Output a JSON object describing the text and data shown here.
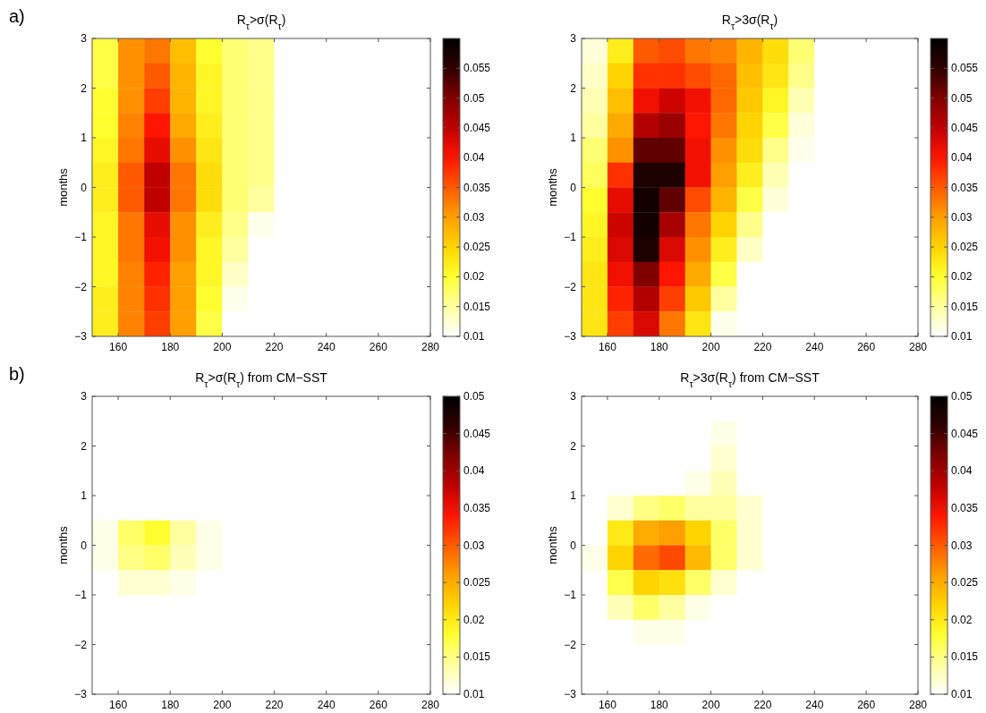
{
  "chart_data": [
    {
      "type": "heatmap",
      "title": "R$_{τ}$>σ(R$_{τ}$)",
      "ylabel": "months",
      "annotations": [
        "a)"
      ],
      "x": [
        155,
        165,
        175,
        185,
        195,
        205,
        215,
        225,
        235,
        245,
        255,
        265,
        275
      ],
      "y": [
        2.75,
        2.25,
        1.75,
        1.25,
        0.75,
        0.25,
        -0.25,
        -0.75,
        -1.25,
        -1.75,
        -2.25,
        -2.75
      ],
      "xlim": [
        150,
        280
      ],
      "xticks": [
        160,
        180,
        200,
        220,
        240,
        260,
        280
      ],
      "ylim": [
        -3,
        3
      ],
      "yticks": [
        -3,
        -2,
        -1,
        0,
        1,
        2,
        3
      ],
      "clim": [
        0.01,
        0.06
      ],
      "cticks": [
        0.01,
        0.015,
        0.02,
        0.025,
        0.03,
        0.035,
        0.04,
        0.045,
        0.05,
        0.055
      ],
      "cells": [
        [
          0.019,
          0.031,
          0.033,
          0.027,
          0.02,
          0.017,
          0.016,
          0.01,
          0.01,
          0.01,
          0.01,
          0.01,
          0.01
        ],
        [
          0.019,
          0.031,
          0.035,
          0.028,
          0.021,
          0.017,
          0.016,
          0.01,
          0.01,
          0.01,
          0.01,
          0.01,
          0.01
        ],
        [
          0.02,
          0.031,
          0.037,
          0.028,
          0.021,
          0.017,
          0.016,
          0.01,
          0.01,
          0.01,
          0.01,
          0.01,
          0.01
        ],
        [
          0.02,
          0.032,
          0.04,
          0.029,
          0.022,
          0.017,
          0.016,
          0.01,
          0.01,
          0.01,
          0.01,
          0.01,
          0.01
        ],
        [
          0.021,
          0.033,
          0.042,
          0.031,
          0.023,
          0.017,
          0.016,
          0.01,
          0.01,
          0.01,
          0.01,
          0.01,
          0.01
        ],
        [
          0.022,
          0.035,
          0.045,
          0.033,
          0.024,
          0.017,
          0.016,
          0.01,
          0.01,
          0.01,
          0.01,
          0.01,
          0.01
        ],
        [
          0.022,
          0.035,
          0.045,
          0.033,
          0.024,
          0.017,
          0.015,
          0.01,
          0.01,
          0.01,
          0.01,
          0.01,
          0.01
        ],
        [
          0.021,
          0.033,
          0.042,
          0.031,
          0.022,
          0.016,
          0.011,
          0.01,
          0.01,
          0.01,
          0.01,
          0.01,
          0.01
        ],
        [
          0.021,
          0.033,
          0.041,
          0.031,
          0.021,
          0.015,
          0.01,
          0.01,
          0.01,
          0.01,
          0.01,
          0.01,
          0.01
        ],
        [
          0.021,
          0.032,
          0.039,
          0.03,
          0.021,
          0.013,
          0.01,
          0.01,
          0.01,
          0.01,
          0.01,
          0.01,
          0.01
        ],
        [
          0.022,
          0.032,
          0.038,
          0.03,
          0.02,
          0.011,
          0.01,
          0.01,
          0.01,
          0.01,
          0.01,
          0.01,
          0.01
        ],
        [
          0.022,
          0.032,
          0.037,
          0.03,
          0.019,
          0.01,
          0.01,
          0.01,
          0.01,
          0.01,
          0.01,
          0.01,
          0.01
        ]
      ]
    },
    {
      "type": "heatmap",
      "title": "R$_{τ}$>3σ(R$_{τ}$)",
      "ylabel": "months",
      "x": [
        155,
        165,
        175,
        185,
        195,
        205,
        215,
        225,
        235,
        245,
        255,
        265,
        275
      ],
      "y": [
        2.75,
        2.25,
        1.75,
        1.25,
        0.75,
        0.25,
        -0.25,
        -0.75,
        -1.25,
        -1.75,
        -2.25,
        -2.75
      ],
      "xlim": [
        150,
        280
      ],
      "xticks": [
        160,
        180,
        200,
        220,
        240,
        260,
        280
      ],
      "ylim": [
        -3,
        3
      ],
      "yticks": [
        -3,
        -2,
        -1,
        0,
        1,
        2,
        3
      ],
      "clim": [
        0.01,
        0.06
      ],
      "cticks": [
        0.01,
        0.015,
        0.02,
        0.025,
        0.03,
        0.035,
        0.04,
        0.045,
        0.05,
        0.055
      ],
      "cells": [
        [
          0.012,
          0.022,
          0.035,
          0.036,
          0.033,
          0.032,
          0.028,
          0.024,
          0.017,
          0.01,
          0.01,
          0.01,
          0.01
        ],
        [
          0.013,
          0.025,
          0.038,
          0.038,
          0.036,
          0.034,
          0.027,
          0.023,
          0.016,
          0.01,
          0.01,
          0.01,
          0.01
        ],
        [
          0.014,
          0.027,
          0.041,
          0.044,
          0.041,
          0.034,
          0.026,
          0.021,
          0.014,
          0.01,
          0.01,
          0.01,
          0.01
        ],
        [
          0.015,
          0.029,
          0.046,
          0.048,
          0.04,
          0.033,
          0.025,
          0.019,
          0.012,
          0.01,
          0.01,
          0.01,
          0.01
        ],
        [
          0.017,
          0.031,
          0.052,
          0.052,
          0.041,
          0.031,
          0.024,
          0.016,
          0.011,
          0.01,
          0.01,
          0.01,
          0.01
        ],
        [
          0.018,
          0.038,
          0.057,
          0.057,
          0.041,
          0.03,
          0.022,
          0.014,
          0.01,
          0.01,
          0.01,
          0.01,
          0.01
        ],
        [
          0.02,
          0.042,
          0.058,
          0.052,
          0.036,
          0.028,
          0.019,
          0.012,
          0.01,
          0.01,
          0.01,
          0.01,
          0.01
        ],
        [
          0.021,
          0.044,
          0.058,
          0.047,
          0.033,
          0.025,
          0.016,
          0.01,
          0.01,
          0.01,
          0.01,
          0.01,
          0.01
        ],
        [
          0.022,
          0.043,
          0.057,
          0.043,
          0.031,
          0.022,
          0.013,
          0.01,
          0.01,
          0.01,
          0.01,
          0.01,
          0.01
        ],
        [
          0.023,
          0.041,
          0.05,
          0.04,
          0.029,
          0.019,
          0.01,
          0.01,
          0.01,
          0.01,
          0.01,
          0.01,
          0.01
        ],
        [
          0.023,
          0.039,
          0.046,
          0.037,
          0.026,
          0.015,
          0.01,
          0.01,
          0.01,
          0.01,
          0.01,
          0.01,
          0.01
        ],
        [
          0.023,
          0.037,
          0.043,
          0.033,
          0.023,
          0.011,
          0.01,
          0.01,
          0.01,
          0.01,
          0.01,
          0.01,
          0.01
        ]
      ]
    },
    {
      "type": "heatmap",
      "title": "R$_{τ}$>σ(R$_{τ}$) from CM−SST",
      "ylabel": "months",
      "annotations": [
        "b)"
      ],
      "x": [
        155,
        165,
        175,
        185,
        195,
        205,
        215,
        225,
        235,
        245,
        255,
        265,
        275
      ],
      "y": [
        2.75,
        2.25,
        1.75,
        1.25,
        0.75,
        0.25,
        -0.25,
        -0.75,
        -1.25,
        -1.75,
        -2.25,
        -2.75
      ],
      "xlim": [
        150,
        280
      ],
      "xticks": [
        160,
        180,
        200,
        220,
        240,
        260,
        280
      ],
      "ylim": [
        -3,
        3
      ],
      "yticks": [
        -3,
        -2,
        -1,
        0,
        1,
        2,
        3
      ],
      "clim": [
        0.01,
        0.05
      ],
      "cticks": [
        0.01,
        0.015,
        0.02,
        0.025,
        0.03,
        0.035,
        0.04,
        0.045,
        0.05
      ],
      "cells": [
        [
          0.01,
          0.01,
          0.01,
          0.01,
          0.01,
          0.01,
          0.01,
          0.01,
          0.01,
          0.01,
          0.01,
          0.01,
          0.01
        ],
        [
          0.01,
          0.01,
          0.01,
          0.01,
          0.01,
          0.01,
          0.01,
          0.01,
          0.01,
          0.01,
          0.01,
          0.01,
          0.01
        ],
        [
          0.01,
          0.01,
          0.01,
          0.01,
          0.01,
          0.01,
          0.01,
          0.01,
          0.01,
          0.01,
          0.01,
          0.01,
          0.01
        ],
        [
          0.01,
          0.01,
          0.01,
          0.01,
          0.01,
          0.01,
          0.01,
          0.01,
          0.01,
          0.01,
          0.01,
          0.01,
          0.01
        ],
        [
          0.01,
          0.01,
          0.01,
          0.01,
          0.01,
          0.01,
          0.01,
          0.01,
          0.01,
          0.01,
          0.01,
          0.01,
          0.01
        ],
        [
          0.011,
          0.016,
          0.018,
          0.014,
          0.011,
          0.01,
          0.01,
          0.01,
          0.01,
          0.01,
          0.01,
          0.01,
          0.01
        ],
        [
          0.011,
          0.015,
          0.016,
          0.013,
          0.011,
          0.01,
          0.01,
          0.01,
          0.01,
          0.01,
          0.01,
          0.01,
          0.01
        ],
        [
          0.01,
          0.012,
          0.012,
          0.011,
          0.01,
          0.01,
          0.01,
          0.01,
          0.01,
          0.01,
          0.01,
          0.01,
          0.01
        ],
        [
          0.01,
          0.01,
          0.01,
          0.01,
          0.01,
          0.01,
          0.01,
          0.01,
          0.01,
          0.01,
          0.01,
          0.01,
          0.01
        ],
        [
          0.01,
          0.01,
          0.01,
          0.01,
          0.01,
          0.01,
          0.01,
          0.01,
          0.01,
          0.01,
          0.01,
          0.01,
          0.01
        ],
        [
          0.01,
          0.01,
          0.01,
          0.01,
          0.01,
          0.01,
          0.01,
          0.01,
          0.01,
          0.01,
          0.01,
          0.01,
          0.01
        ],
        [
          0.01,
          0.01,
          0.01,
          0.01,
          0.01,
          0.01,
          0.01,
          0.01,
          0.01,
          0.01,
          0.01,
          0.01,
          0.01
        ]
      ]
    },
    {
      "type": "heatmap",
      "title": "R$_{τ}$>3σ(R$_{τ}$) from CM−SST",
      "ylabel": "months",
      "x": [
        155,
        165,
        175,
        185,
        195,
        205,
        215,
        225,
        235,
        245,
        255,
        265,
        275
      ],
      "y": [
        2.75,
        2.25,
        1.75,
        1.25,
        0.75,
        0.25,
        -0.25,
        -0.75,
        -1.25,
        -1.75,
        -2.25,
        -2.75
      ],
      "xlim": [
        150,
        280
      ],
      "xticks": [
        160,
        180,
        200,
        220,
        240,
        260,
        280
      ],
      "ylim": [
        -3,
        3
      ],
      "yticks": [
        -3,
        -2,
        -1,
        0,
        1,
        2,
        3
      ],
      "clim": [
        0.01,
        0.05
      ],
      "cticks": [
        0.01,
        0.015,
        0.02,
        0.025,
        0.03,
        0.035,
        0.04,
        0.045,
        0.05
      ],
      "cells": [
        [
          0.01,
          0.01,
          0.01,
          0.01,
          0.01,
          0.01,
          0.01,
          0.01,
          0.01,
          0.01,
          0.01,
          0.01,
          0.01
        ],
        [
          0.01,
          0.01,
          0.01,
          0.01,
          0.01,
          0.011,
          0.01,
          0.01,
          0.01,
          0.01,
          0.01,
          0.01,
          0.01
        ],
        [
          0.01,
          0.01,
          0.01,
          0.01,
          0.01,
          0.012,
          0.01,
          0.01,
          0.01,
          0.01,
          0.01,
          0.01,
          0.01
        ],
        [
          0.01,
          0.01,
          0.01,
          0.01,
          0.011,
          0.013,
          0.01,
          0.01,
          0.01,
          0.01,
          0.01,
          0.01,
          0.01
        ],
        [
          0.01,
          0.012,
          0.015,
          0.016,
          0.014,
          0.014,
          0.012,
          0.01,
          0.01,
          0.01,
          0.01,
          0.01,
          0.01
        ],
        [
          0.01,
          0.02,
          0.025,
          0.026,
          0.022,
          0.016,
          0.012,
          0.01,
          0.01,
          0.01,
          0.01,
          0.01,
          0.01
        ],
        [
          0.011,
          0.022,
          0.029,
          0.031,
          0.024,
          0.016,
          0.012,
          0.01,
          0.01,
          0.01,
          0.01,
          0.01,
          0.01
        ],
        [
          0.01,
          0.017,
          0.022,
          0.021,
          0.016,
          0.012,
          0.01,
          0.01,
          0.01,
          0.01,
          0.01,
          0.01,
          0.01
        ],
        [
          0.01,
          0.013,
          0.016,
          0.014,
          0.011,
          0.01,
          0.01,
          0.01,
          0.01,
          0.01,
          0.01,
          0.01,
          0.01
        ],
        [
          0.01,
          0.01,
          0.011,
          0.011,
          0.01,
          0.01,
          0.01,
          0.01,
          0.01,
          0.01,
          0.01,
          0.01,
          0.01
        ],
        [
          0.01,
          0.01,
          0.01,
          0.01,
          0.01,
          0.01,
          0.01,
          0.01,
          0.01,
          0.01,
          0.01,
          0.01,
          0.01
        ],
        [
          0.01,
          0.01,
          0.01,
          0.01,
          0.01,
          0.01,
          0.01,
          0.01,
          0.01,
          0.01,
          0.01,
          0.01,
          0.01
        ]
      ]
    }
  ]
}
